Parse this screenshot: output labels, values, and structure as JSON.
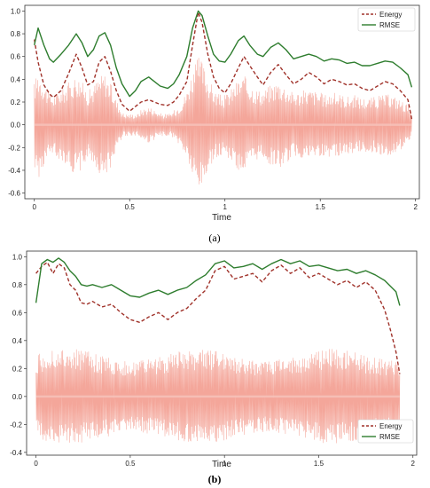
{
  "chart_data": [
    {
      "type": "line",
      "panel_label": "(a)",
      "xlabel": "Time",
      "ylabel": "",
      "xlim": [
        -0.05,
        2.02
      ],
      "ylim": [
        -0.65,
        1.05
      ],
      "xticks": [
        "0",
        "0.5",
        "1",
        "1.5",
        "2"
      ],
      "xtick_values": [
        0,
        0.5,
        1,
        1.5,
        2
      ],
      "yticks": [
        "-0.6",
        "-0.4",
        "-0.2",
        "0.0",
        "0.2",
        "0.4",
        "0.6",
        "0.8",
        "1.0"
      ],
      "ytick_values": [
        -0.6,
        -0.4,
        -0.2,
        0.0,
        0.2,
        0.4,
        0.6,
        0.8,
        1.0
      ],
      "legend_position": "top-right",
      "waveform_color": "#f08878",
      "series": [
        {
          "name": "Energy",
          "style": "dashed",
          "color": "#a0322a",
          "x": [
            0,
            0.02,
            0.05,
            0.08,
            0.1,
            0.14,
            0.18,
            0.22,
            0.25,
            0.28,
            0.31,
            0.34,
            0.37,
            0.4,
            0.43,
            0.46,
            0.5,
            0.53,
            0.56,
            0.6,
            0.63,
            0.66,
            0.7,
            0.73,
            0.76,
            0.8,
            0.83,
            0.86,
            0.88,
            0.91,
            0.94,
            0.97,
            1.0,
            1.03,
            1.07,
            1.1,
            1.13,
            1.17,
            1.2,
            1.24,
            1.28,
            1.32,
            1.36,
            1.4,
            1.44,
            1.48,
            1.52,
            1.56,
            1.6,
            1.64,
            1.68,
            1.72,
            1.76,
            1.8,
            1.84,
            1.88,
            1.92,
            1.96,
            1.98
          ],
          "y": [
            0.75,
            0.55,
            0.35,
            0.27,
            0.24,
            0.3,
            0.45,
            0.62,
            0.5,
            0.35,
            0.38,
            0.55,
            0.6,
            0.47,
            0.3,
            0.18,
            0.12,
            0.16,
            0.2,
            0.22,
            0.2,
            0.18,
            0.17,
            0.2,
            0.26,
            0.38,
            0.7,
            0.99,
            0.9,
            0.62,
            0.42,
            0.32,
            0.28,
            0.36,
            0.5,
            0.6,
            0.52,
            0.42,
            0.35,
            0.46,
            0.53,
            0.44,
            0.36,
            0.4,
            0.46,
            0.42,
            0.36,
            0.4,
            0.38,
            0.35,
            0.36,
            0.32,
            0.3,
            0.34,
            0.38,
            0.36,
            0.3,
            0.22,
            0.05
          ]
        },
        {
          "name": "RMSE",
          "style": "solid",
          "color": "#2e7d2e",
          "x": [
            0,
            0.02,
            0.05,
            0.08,
            0.1,
            0.14,
            0.18,
            0.22,
            0.25,
            0.28,
            0.31,
            0.34,
            0.37,
            0.4,
            0.43,
            0.46,
            0.5,
            0.53,
            0.56,
            0.6,
            0.63,
            0.66,
            0.7,
            0.73,
            0.76,
            0.8,
            0.83,
            0.86,
            0.88,
            0.91,
            0.94,
            0.97,
            1.0,
            1.03,
            1.07,
            1.1,
            1.13,
            1.17,
            1.2,
            1.24,
            1.28,
            1.32,
            1.36,
            1.4,
            1.44,
            1.48,
            1.52,
            1.56,
            1.6,
            1.64,
            1.68,
            1.72,
            1.76,
            1.8,
            1.84,
            1.88,
            1.92,
            1.96,
            1.98
          ],
          "y": [
            0.7,
            0.85,
            0.7,
            0.58,
            0.55,
            0.62,
            0.7,
            0.8,
            0.72,
            0.6,
            0.66,
            0.78,
            0.81,
            0.7,
            0.5,
            0.36,
            0.25,
            0.3,
            0.38,
            0.42,
            0.38,
            0.34,
            0.32,
            0.36,
            0.44,
            0.6,
            0.85,
            1.0,
            0.96,
            0.78,
            0.62,
            0.56,
            0.55,
            0.62,
            0.74,
            0.78,
            0.7,
            0.62,
            0.6,
            0.68,
            0.72,
            0.66,
            0.58,
            0.6,
            0.62,
            0.6,
            0.56,
            0.58,
            0.57,
            0.54,
            0.55,
            0.52,
            0.52,
            0.54,
            0.56,
            0.55,
            0.5,
            0.44,
            0.33
          ]
        }
      ]
    },
    {
      "type": "line",
      "panel_label": "(b)",
      "xlabel": "Time",
      "ylabel": "",
      "xlim": [
        -0.05,
        2.02
      ],
      "ylim": [
        -0.42,
        1.04
      ],
      "xticks": [
        "0",
        "0.5",
        "1",
        "1.5",
        "2"
      ],
      "xtick_values": [
        0,
        0.5,
        1,
        1.5,
        2
      ],
      "yticks": [
        "-0.4",
        "-0.2",
        "0.0",
        "0.2",
        "0.4",
        "0.6",
        "0.8",
        "1.0"
      ],
      "ytick_values": [
        -0.4,
        -0.2,
        0.0,
        0.2,
        0.4,
        0.6,
        0.8,
        1.0
      ],
      "legend_position": "bottom-right",
      "waveform_color": "#f08878",
      "series": [
        {
          "name": "Energy",
          "style": "dashed",
          "color": "#a0322a",
          "x": [
            0,
            0.03,
            0.06,
            0.09,
            0.12,
            0.15,
            0.18,
            0.21,
            0.24,
            0.27,
            0.3,
            0.35,
            0.4,
            0.45,
            0.5,
            0.55,
            0.6,
            0.65,
            0.7,
            0.75,
            0.8,
            0.85,
            0.9,
            0.95,
            1.0,
            1.05,
            1.1,
            1.15,
            1.2,
            1.25,
            1.3,
            1.35,
            1.4,
            1.45,
            1.5,
            1.55,
            1.6,
            1.65,
            1.7,
            1.75,
            1.8,
            1.85,
            1.88,
            1.91,
            1.93
          ],
          "y": [
            0.88,
            0.93,
            0.96,
            0.88,
            0.95,
            0.92,
            0.8,
            0.76,
            0.67,
            0.66,
            0.68,
            0.64,
            0.66,
            0.6,
            0.55,
            0.53,
            0.57,
            0.6,
            0.55,
            0.6,
            0.63,
            0.7,
            0.76,
            0.9,
            0.93,
            0.84,
            0.86,
            0.88,
            0.82,
            0.9,
            0.94,
            0.88,
            0.92,
            0.85,
            0.88,
            0.84,
            0.8,
            0.83,
            0.78,
            0.82,
            0.76,
            0.62,
            0.48,
            0.32,
            0.16
          ]
        },
        {
          "name": "RMSE",
          "style": "solid",
          "color": "#2e7d2e",
          "x": [
            0,
            0.03,
            0.06,
            0.09,
            0.12,
            0.15,
            0.18,
            0.21,
            0.24,
            0.27,
            0.3,
            0.35,
            0.4,
            0.45,
            0.5,
            0.55,
            0.6,
            0.65,
            0.7,
            0.75,
            0.8,
            0.85,
            0.9,
            0.95,
            1.0,
            1.05,
            1.1,
            1.15,
            1.2,
            1.25,
            1.3,
            1.35,
            1.4,
            1.45,
            1.5,
            1.55,
            1.6,
            1.65,
            1.7,
            1.75,
            1.8,
            1.85,
            1.88,
            1.91,
            1.93
          ],
          "y": [
            0.67,
            0.95,
            0.98,
            0.96,
            0.99,
            0.96,
            0.9,
            0.86,
            0.8,
            0.79,
            0.8,
            0.78,
            0.8,
            0.76,
            0.72,
            0.71,
            0.74,
            0.76,
            0.73,
            0.76,
            0.78,
            0.83,
            0.87,
            0.95,
            0.97,
            0.92,
            0.93,
            0.95,
            0.91,
            0.95,
            0.98,
            0.95,
            0.97,
            0.93,
            0.94,
            0.92,
            0.9,
            0.91,
            0.88,
            0.9,
            0.87,
            0.83,
            0.79,
            0.75,
            0.65
          ]
        }
      ]
    }
  ]
}
